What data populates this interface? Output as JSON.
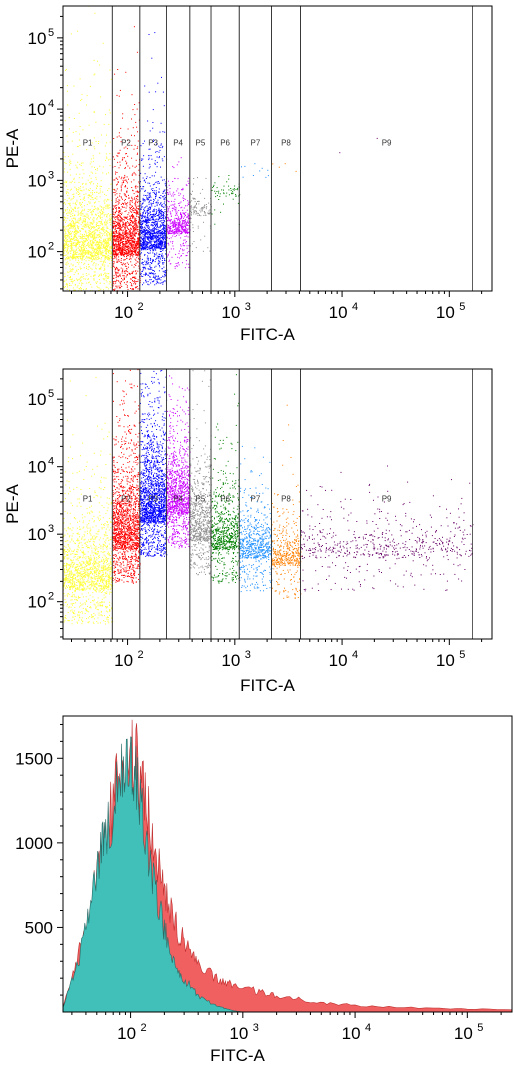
{
  "chart_data": [
    {
      "type": "scatter",
      "xlabel": "FITC-A",
      "ylabel": "PE-A",
      "x_scale": "log",
      "y_scale": "log",
      "xlim": [
        25,
        250000
      ],
      "ylim": [
        28,
        280000
      ],
      "x_ticks": [
        {
          "value": 100,
          "base": "10",
          "exp": "2"
        },
        {
          "value": 1000,
          "base": "10",
          "exp": "3"
        },
        {
          "value": 10000,
          "base": "10",
          "exp": "4"
        },
        {
          "value": 100000,
          "base": "10",
          "exp": "5"
        }
      ],
      "y_ticks": [
        {
          "value": 100,
          "base": "10",
          "exp": "2"
        },
        {
          "value": 1000,
          "base": "10",
          "exp": "3"
        },
        {
          "value": 10000,
          "base": "10",
          "exp": "4"
        },
        {
          "value": 100000,
          "base": "10",
          "exp": "5"
        }
      ],
      "gates": [
        {
          "name": "P1",
          "x_min": 25,
          "x_max": 72,
          "color": "#ffff33",
          "y_center": 80,
          "spread": 1.0,
          "points": 1800
        },
        {
          "name": "P2",
          "x_min": 72,
          "x_max": 130,
          "color": "#ff0000",
          "y_center": 90,
          "spread": 0.9,
          "points": 1500
        },
        {
          "name": "P3",
          "x_min": 130,
          "x_max": 230,
          "color": "#0000ff",
          "y_center": 110,
          "spread": 0.8,
          "points": 1300
        },
        {
          "name": "P4",
          "x_min": 230,
          "x_max": 380,
          "color": "#cc00ff",
          "y_center": 180,
          "spread": 0.45,
          "points": 500
        },
        {
          "name": "P5",
          "x_min": 380,
          "x_max": 600,
          "color": "#909090",
          "y_center": 320,
          "spread": 0.3,
          "points": 120
        },
        {
          "name": "P6",
          "x_min": 600,
          "x_max": 1100,
          "color": "#008000",
          "y_center": 600,
          "spread": 0.25,
          "points": 60
        },
        {
          "name": "P7",
          "x_min": 1100,
          "x_max": 2200,
          "color": "#1e90ff",
          "y_center": 1100,
          "spread": 0.3,
          "points": 10
        },
        {
          "name": "P8",
          "x_min": 2200,
          "x_max": 4100,
          "color": "#ff8000",
          "y_center": 1500,
          "spread": 0.3,
          "points": 4
        },
        {
          "name": "P9",
          "x_min": 4100,
          "x_max": 165000,
          "color": "#660066",
          "y_center": 2000,
          "spread": 0.3,
          "points": 2
        }
      ]
    },
    {
      "type": "scatter",
      "xlabel": "FITC-A",
      "ylabel": "PE-A",
      "x_scale": "log",
      "y_scale": "log",
      "xlim": [
        25,
        250000
      ],
      "ylim": [
        28,
        280000
      ],
      "x_ticks": [
        {
          "value": 100,
          "base": "10",
          "exp": "2"
        },
        {
          "value": 1000,
          "base": "10",
          "exp": "3"
        },
        {
          "value": 10000,
          "base": "10",
          "exp": "4"
        },
        {
          "value": 100000,
          "base": "10",
          "exp": "5"
        }
      ],
      "y_ticks": [
        {
          "value": 100,
          "base": "10",
          "exp": "2"
        },
        {
          "value": 1000,
          "base": "10",
          "exp": "3"
        },
        {
          "value": 10000,
          "base": "10",
          "exp": "4"
        },
        {
          "value": 100000,
          "base": "10",
          "exp": "5"
        }
      ],
      "gates": [
        {
          "name": "P1",
          "x_min": 25,
          "x_max": 72,
          "color": "#ffff33",
          "y_center": 150,
          "spread": 1.0,
          "points": 1400
        },
        {
          "name": "P2",
          "x_min": 72,
          "x_max": 130,
          "color": "#ff0000",
          "y_center": 600,
          "spread": 1.3,
          "points": 1600
        },
        {
          "name": "P3",
          "x_min": 130,
          "x_max": 230,
          "color": "#0000ff",
          "y_center": 1500,
          "spread": 1.2,
          "points": 1700
        },
        {
          "name": "P4",
          "x_min": 230,
          "x_max": 380,
          "color": "#cc00ff",
          "y_center": 2000,
          "spread": 1.0,
          "points": 1100
        },
        {
          "name": "P5",
          "x_min": 380,
          "x_max": 600,
          "color": "#909090",
          "y_center": 800,
          "spread": 0.9,
          "points": 700
        },
        {
          "name": "P6",
          "x_min": 600,
          "x_max": 1100,
          "color": "#008000",
          "y_center": 600,
          "spread": 0.8,
          "points": 700
        },
        {
          "name": "P7",
          "x_min": 1100,
          "x_max": 2200,
          "color": "#1e90ff",
          "y_center": 450,
          "spread": 0.7,
          "points": 650
        },
        {
          "name": "P8",
          "x_min": 2200,
          "x_max": 4100,
          "color": "#ff8000",
          "y_center": 350,
          "spread": 0.6,
          "points": 450
        },
        {
          "name": "P9",
          "x_min": 4100,
          "x_max": 165000,
          "color": "#660066",
          "y_center": 450,
          "spread": 0.6,
          "points": 600
        }
      ]
    },
    {
      "type": "area",
      "xlabel": "FITC-A",
      "ylabel": "",
      "x_scale": "log",
      "xlim": [
        25,
        250000
      ],
      "ylim": [
        0,
        1750
      ],
      "x_ticks": [
        {
          "value": 100,
          "base": "10",
          "exp": "2"
        },
        {
          "value": 1000,
          "base": "10",
          "exp": "3"
        },
        {
          "value": 10000,
          "base": "10",
          "exp": "4"
        },
        {
          "value": 100000,
          "base": "10",
          "exp": "5"
        }
      ],
      "y_ticks": [
        500,
        1000,
        1500
      ],
      "series": [
        {
          "color": "#f06060",
          "x": [
            25,
            30,
            35,
            40,
            45,
            50,
            55,
            60,
            70,
            80,
            90,
            100,
            110,
            120,
            135,
            150,
            170,
            190,
            210,
            240,
            270,
            300,
            350,
            400,
            500,
            600,
            700,
            800,
            1000,
            1300,
            1600,
            2000,
            3000,
            4000,
            6000,
            10000,
            20000,
            50000,
            100000,
            250000
          ],
          "y": [
            30,
            200,
            350,
            500,
            650,
            820,
            950,
            1050,
            1250,
            1420,
            1500,
            1560,
            1500,
            1400,
            1250,
            1100,
            950,
            800,
            680,
            550,
            470,
            420,
            350,
            300,
            240,
            200,
            175,
            160,
            140,
            125,
            110,
            95,
            80,
            65,
            50,
            40,
            30,
            22,
            18,
            15
          ]
        },
        {
          "color": "#40c0b8",
          "x": [
            25,
            30,
            35,
            40,
            45,
            50,
            55,
            60,
            70,
            80,
            90,
            100,
            110,
            120,
            135,
            150,
            170,
            190,
            210,
            240,
            270,
            300,
            350,
            400,
            500,
            600,
            700,
            800,
            1000
          ],
          "y": [
            30,
            180,
            330,
            480,
            640,
            800,
            930,
            1030,
            1230,
            1400,
            1480,
            1540,
            1450,
            1300,
            1100,
            900,
            700,
            550,
            430,
            320,
            250,
            200,
            140,
            100,
            60,
            35,
            20,
            10,
            0
          ]
        }
      ]
    }
  ]
}
